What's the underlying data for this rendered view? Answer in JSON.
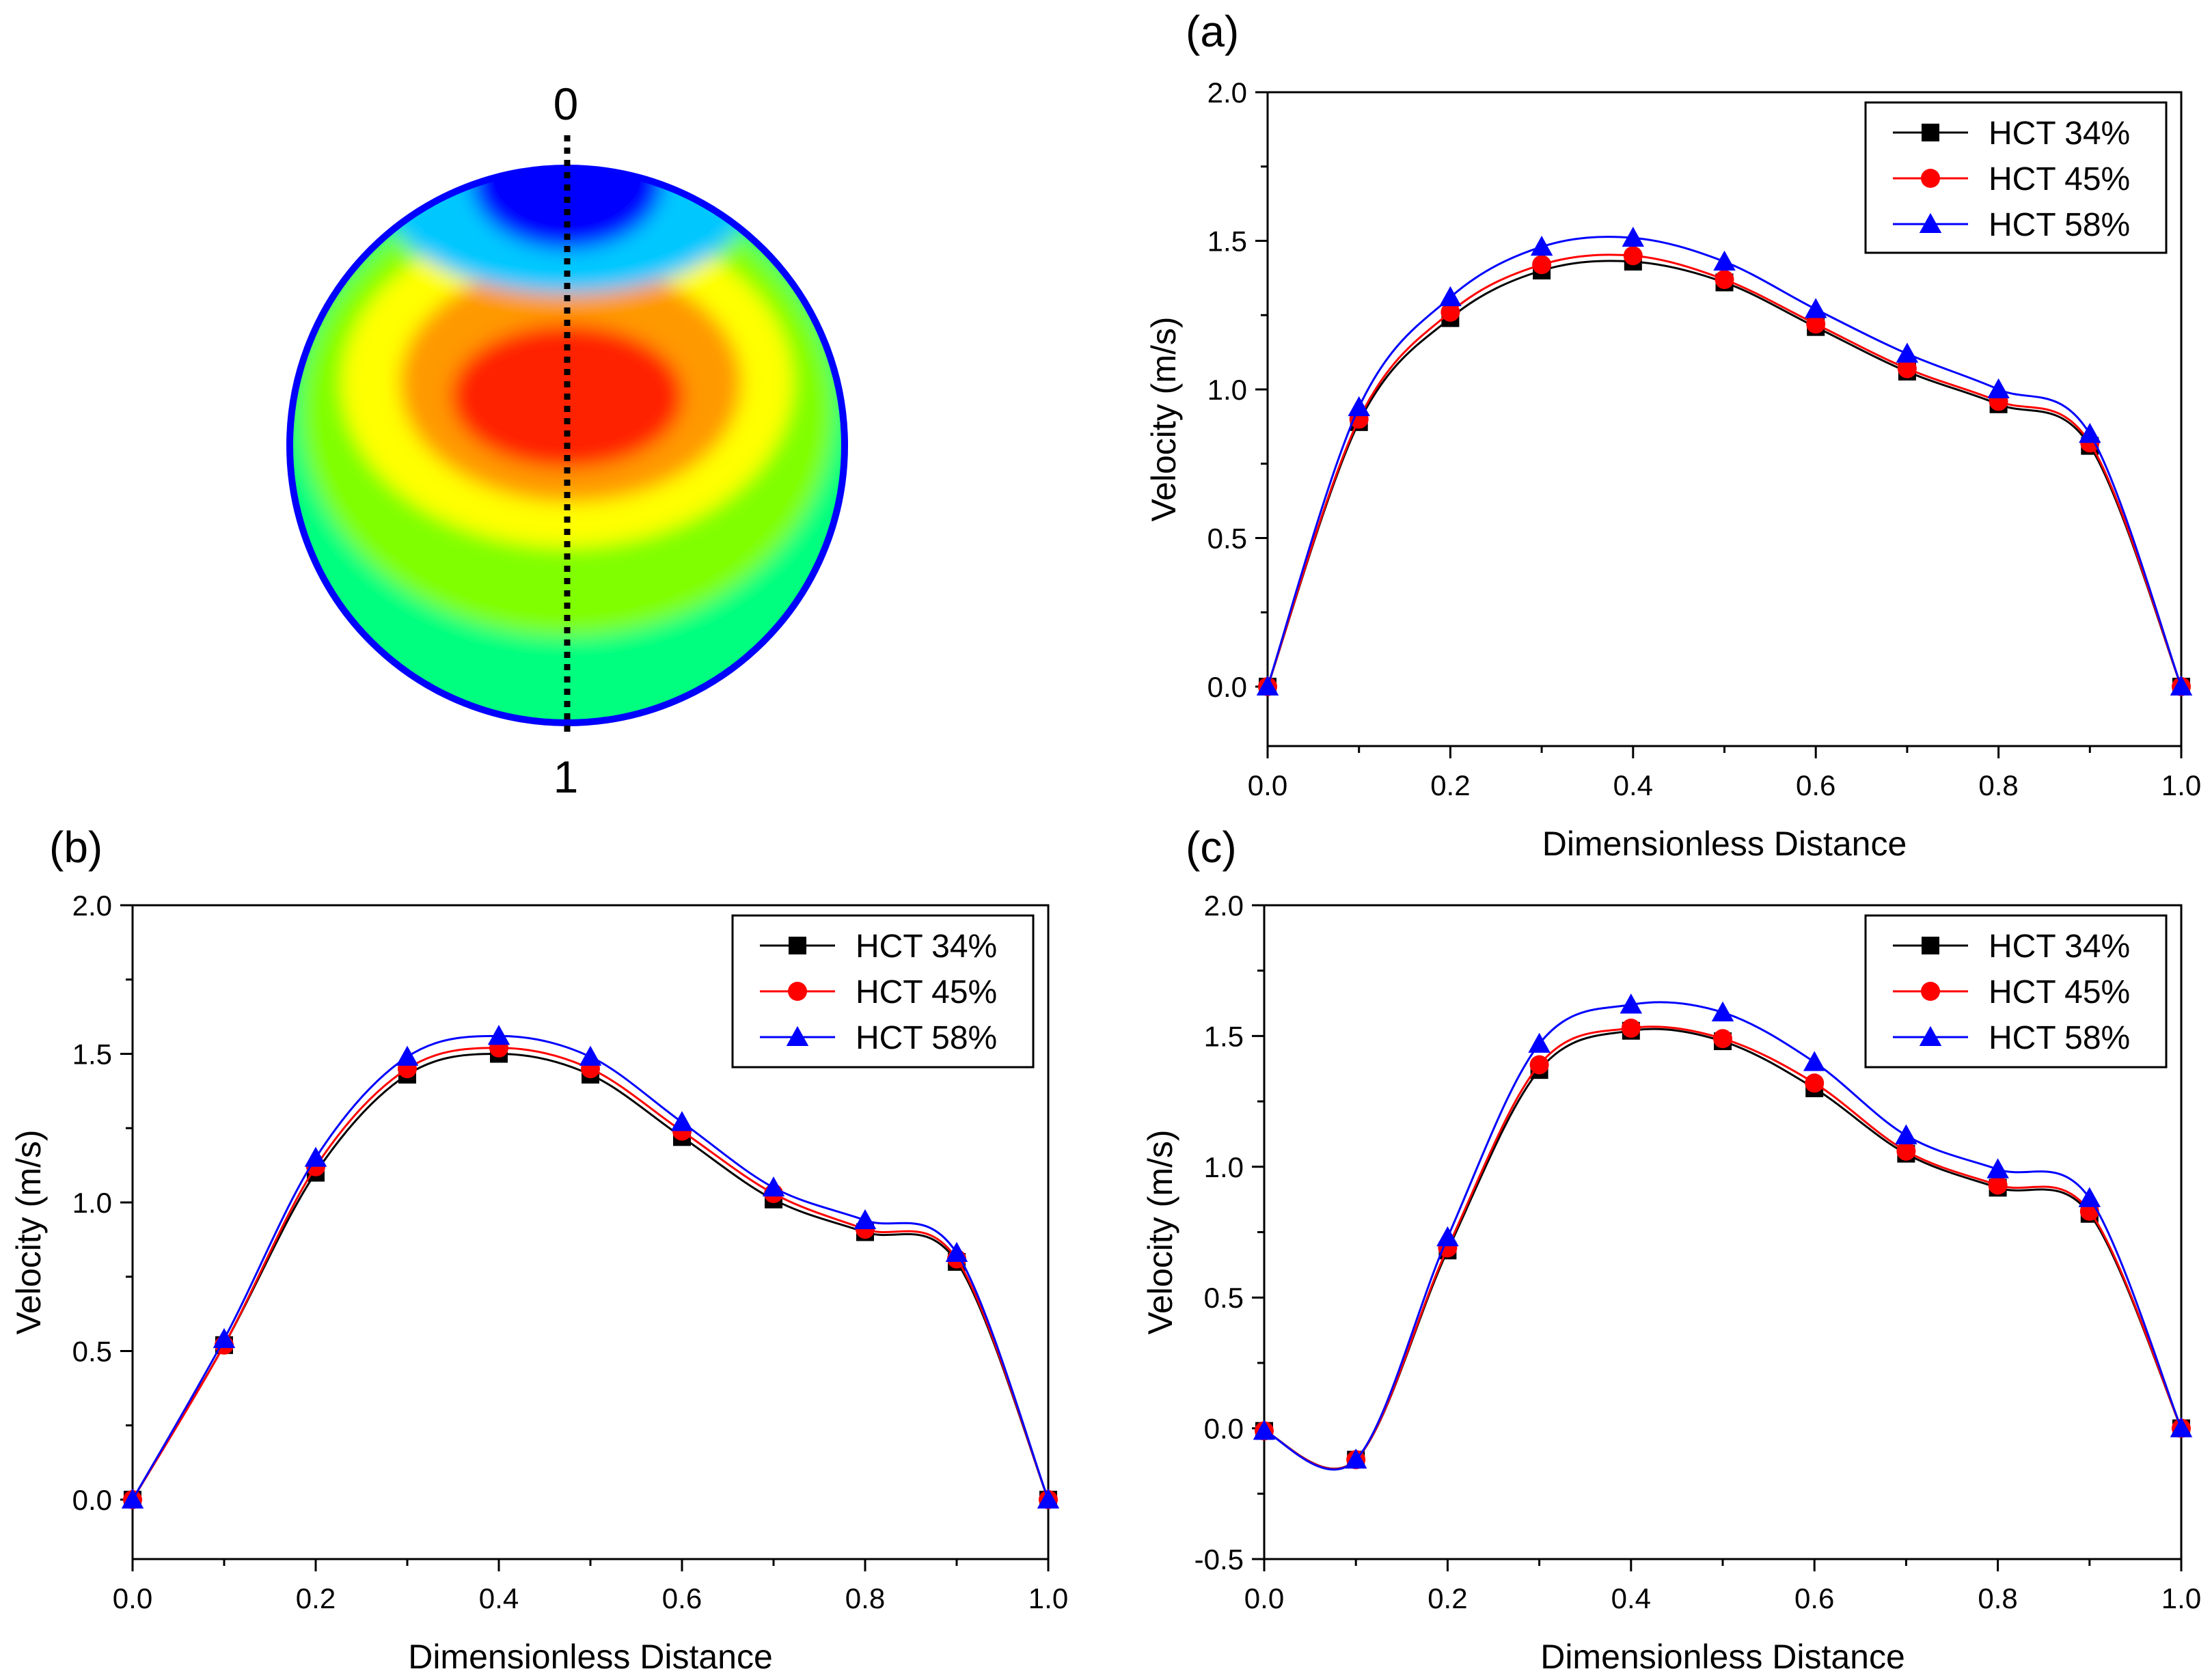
{
  "contour": {
    "label_top": "0",
    "label_bottom": "1",
    "colors": {
      "blue": "#0000ff",
      "cyan": "#00c8ff",
      "green": "#00ff7f",
      "lime": "#80ff00",
      "yellow": "#ffff00",
      "orange": "#ff9900",
      "red": "#ff2200"
    }
  },
  "series_style": [
    {
      "name": "HCT 34%",
      "color": "#000000",
      "marker": "square"
    },
    {
      "name": "HCT 45%",
      "color": "#ff0000",
      "marker": "circle"
    },
    {
      "name": "HCT 58%",
      "color": "#0000ff",
      "marker": "triangle"
    }
  ],
  "chart_data": [
    {
      "panel": "(a)",
      "type": "line",
      "xlabel": "Dimensionless Distance",
      "ylabel": "Velocity (m/s)",
      "xlim": [
        0.0,
        1.0
      ],
      "ylim": [
        -0.2,
        2.0
      ],
      "xticks": [
        "0.0",
        "0.2",
        "0.4",
        "0.6",
        "0.8",
        "1.0"
      ],
      "yticks": [
        "0.0",
        "0.5",
        "1.0",
        "1.5",
        "2.0"
      ],
      "ytick_values": [
        0.0,
        0.5,
        1.0,
        1.5,
        2.0
      ],
      "legend": "top-right",
      "x": [
        0.0,
        0.1,
        0.2,
        0.3,
        0.4,
        0.5,
        0.6,
        0.7,
        0.8,
        0.9,
        1.0
      ],
      "series": [
        {
          "name": "HCT 34%",
          "values": [
            0.0,
            0.89,
            1.24,
            1.4,
            1.43,
            1.36,
            1.21,
            1.06,
            0.95,
            0.81,
            0.0
          ]
        },
        {
          "name": "HCT 45%",
          "values": [
            0.0,
            0.9,
            1.26,
            1.42,
            1.45,
            1.37,
            1.22,
            1.07,
            0.96,
            0.82,
            0.0
          ]
        },
        {
          "name": "HCT 58%",
          "values": [
            0.0,
            0.94,
            1.31,
            1.48,
            1.51,
            1.43,
            1.27,
            1.12,
            1.0,
            0.85,
            0.0
          ]
        }
      ]
    },
    {
      "panel": "(b)",
      "type": "line",
      "xlabel": "Dimensionless Distance",
      "ylabel": "Velocity (m/s)",
      "xlim": [
        0.0,
        1.0
      ],
      "ylim": [
        -0.2,
        2.0
      ],
      "xticks": [
        "0.0",
        "0.2",
        "0.4",
        "0.6",
        "0.8",
        "1.0"
      ],
      "yticks": [
        "0.0",
        "0.5",
        "1.0",
        "1.5",
        "2.0"
      ],
      "ytick_values": [
        0.0,
        0.5,
        1.0,
        1.5,
        2.0
      ],
      "legend": "top-right",
      "x": [
        0.0,
        0.1,
        0.2,
        0.3,
        0.4,
        0.5,
        0.6,
        0.7,
        0.8,
        0.9,
        1.0
      ],
      "series": [
        {
          "name": "HCT 34%",
          "values": [
            0.0,
            0.52,
            1.1,
            1.43,
            1.5,
            1.43,
            1.22,
            1.01,
            0.9,
            0.8,
            0.0
          ]
        },
        {
          "name": "HCT 45%",
          "values": [
            0.0,
            0.52,
            1.12,
            1.45,
            1.52,
            1.45,
            1.24,
            1.03,
            0.91,
            0.81,
            0.0
          ]
        },
        {
          "name": "HCT 58%",
          "values": [
            0.0,
            0.54,
            1.15,
            1.49,
            1.56,
            1.49,
            1.27,
            1.05,
            0.94,
            0.83,
            0.0
          ]
        }
      ]
    },
    {
      "panel": "(c)",
      "type": "line",
      "xlabel": "Dimensionless Distance",
      "ylabel": "Velocity (m/s)",
      "xlim": [
        0.0,
        1.0
      ],
      "ylim": [
        -0.5,
        2.0
      ],
      "xticks": [
        "0.0",
        "0.2",
        "0.4",
        "0.6",
        "0.8",
        "1.0"
      ],
      "yticks": [
        "-0.5",
        "0.0",
        "0.5",
        "1.0",
        "1.5",
        "2.0"
      ],
      "ytick_values": [
        -0.5,
        0.0,
        0.5,
        1.0,
        1.5,
        2.0
      ],
      "legend": "top-right",
      "x": [
        0.0,
        0.1,
        0.2,
        0.3,
        0.4,
        0.5,
        0.6,
        0.7,
        0.8,
        0.9,
        1.0
      ],
      "series": [
        {
          "name": "HCT 34%",
          "values": [
            -0.01,
            -0.12,
            0.68,
            1.37,
            1.52,
            1.48,
            1.3,
            1.05,
            0.92,
            0.82,
            0.0
          ]
        },
        {
          "name": "HCT 45%",
          "values": [
            -0.01,
            -0.12,
            0.69,
            1.39,
            1.53,
            1.49,
            1.32,
            1.06,
            0.93,
            0.83,
            0.0
          ]
        },
        {
          "name": "HCT 58%",
          "values": [
            -0.01,
            -0.12,
            0.73,
            1.47,
            1.62,
            1.59,
            1.4,
            1.12,
            0.99,
            0.88,
            0.0
          ]
        }
      ]
    }
  ]
}
